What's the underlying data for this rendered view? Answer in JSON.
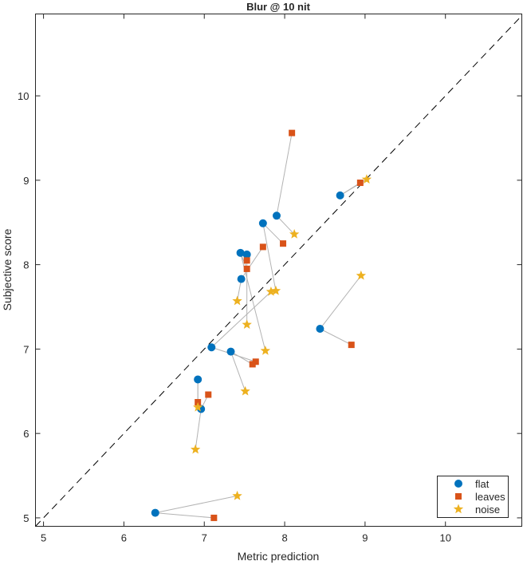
{
  "chart_data": {
    "type": "scatter",
    "title": "Blur @ 10 nit",
    "xlabel": "Metric prediction",
    "ylabel": "Subjective score",
    "xlim": [
      4.9,
      10.95
    ],
    "ylim": [
      4.9,
      10.97
    ],
    "xticks": [
      5,
      6,
      7,
      8,
      9,
      10
    ],
    "yticks": [
      5,
      6,
      7,
      8,
      9,
      10
    ],
    "grid": false,
    "legend_position": "bottom-right",
    "reference_line": "y = x (dashed)",
    "series": [
      {
        "name": "flat",
        "marker": "circle",
        "color": "#0072BD",
        "points": [
          [
            6.39,
            5.06
          ],
          [
            6.92,
            6.64
          ],
          [
            6.96,
            6.29
          ],
          [
            7.09,
            7.02
          ],
          [
            7.33,
            6.97
          ],
          [
            7.46,
            7.83
          ],
          [
            7.45,
            8.14
          ],
          [
            7.53,
            8.12
          ],
          [
            7.73,
            8.49
          ],
          [
            7.9,
            8.58
          ],
          [
            8.44,
            7.24
          ],
          [
            8.69,
            8.82
          ]
        ]
      },
      {
        "name": "leaves",
        "marker": "square",
        "color": "#D95319",
        "points": [
          [
            7.12,
            5.0
          ],
          [
            6.92,
            6.37
          ],
          [
            7.05,
            6.46
          ],
          [
            7.64,
            6.85
          ],
          [
            7.6,
            6.82
          ],
          [
            7.73,
            8.21
          ],
          [
            7.53,
            7.95
          ],
          [
            7.53,
            8.05
          ],
          [
            7.98,
            8.25
          ],
          [
            8.09,
            9.56
          ],
          [
            8.83,
            7.05
          ],
          [
            8.94,
            8.97
          ]
        ]
      },
      {
        "name": "noise",
        "marker": "star",
        "color": "#EDB120",
        "points": [
          [
            7.41,
            5.26
          ],
          [
            6.92,
            6.31
          ],
          [
            6.89,
            5.81
          ],
          [
            7.83,
            7.68
          ],
          [
            7.51,
            6.5
          ],
          [
            7.41,
            7.57
          ],
          [
            7.76,
            6.98
          ],
          [
            7.53,
            7.29
          ],
          [
            7.89,
            7.69
          ],
          [
            8.12,
            8.36
          ],
          [
            8.95,
            7.87
          ],
          [
            9.02,
            9.01
          ]
        ]
      }
    ],
    "connector_color": "#b3b3b3"
  }
}
